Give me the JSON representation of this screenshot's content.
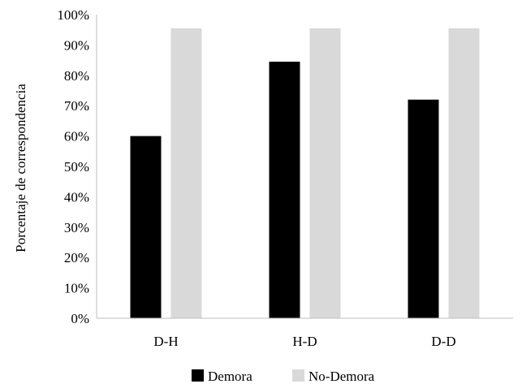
{
  "chart_data": {
    "type": "bar",
    "title": "",
    "xlabel": "",
    "ylabel": "Porcentaje de correspondencia",
    "ylim": [
      0,
      100
    ],
    "y_ticks": [
      "0%",
      "10%",
      "20%",
      "30%",
      "40%",
      "50%",
      "60%",
      "70%",
      "80%",
      "90%",
      "100%"
    ],
    "categories": [
      "D-H",
      "H-D",
      "D-D"
    ],
    "series": [
      {
        "name": "Demora",
        "color": "#000000",
        "values": [
          60,
          84.5,
          72
        ]
      },
      {
        "name": "No-Demora",
        "color": "#d9d9d9",
        "values": [
          95.5,
          95.5,
          95.5
        ]
      }
    ],
    "grid": false,
    "legend": "bottom-center"
  }
}
